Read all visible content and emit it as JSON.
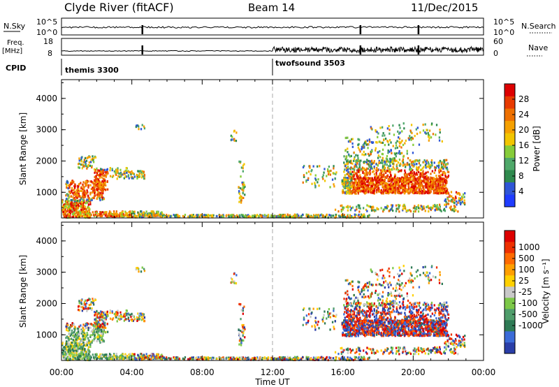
{
  "header": {
    "station": "Clyde River (fitACF)",
    "beam": "Beam 14",
    "date": "11/Dec/2015"
  },
  "param_panels": {
    "nsky_label": "N.Sky",
    "nsky_ticks": [
      "10^5",
      "10^0"
    ],
    "nsearch_label": "N.Search",
    "nsearch_ticks": [
      "10^5",
      "10^0"
    ],
    "freq_label_1": "Freq.",
    "freq_label_2": "[MHz]",
    "freq_ticks": [
      "18",
      "8"
    ],
    "nave_label": "Nave",
    "nave_ticks": [
      "60",
      "0"
    ],
    "cpid_label": "CPID",
    "cpid_segments": [
      {
        "name": "themis 3300",
        "start": 0,
        "end": 12
      },
      {
        "name": "twofsound 3503",
        "start": 12,
        "end": 24
      }
    ]
  },
  "colors": {
    "power": [
      "#1f3cff",
      "#2f56d6",
      "#2f8a4e",
      "#4fa86a",
      "#86cc3a",
      "#f2c500",
      "#f5a000",
      "#ee7000",
      "#e83a00",
      "#dd0000"
    ],
    "velocity": [
      "#2a3ea8",
      "#3b6bd8",
      "#2e7a55",
      "#4f9d6b",
      "#7cc848",
      "#c8c8c8",
      "#ffd000",
      "#ff9f00",
      "#ff6a00",
      "#ee3000",
      "#dd0000"
    ]
  },
  "chart_data": [
    {
      "type": "heatmap",
      "panel": "power",
      "ylabel": "Slant Range [km]",
      "xlim": [
        0,
        24
      ],
      "ylim": [
        180,
        4600
      ],
      "yticks": [
        "1000",
        "2000",
        "3000",
        "4000"
      ],
      "xticks": [
        "00:00",
        "04:00",
        "08:00",
        "12:00",
        "16:00",
        "20:00",
        "00:00"
      ],
      "colorbar": {
        "label": "Power [dB]",
        "range": [
          0,
          32
        ],
        "ticks": [
          "4",
          "8",
          "12",
          "16",
          "20",
          "24",
          "28"
        ]
      }
    },
    {
      "type": "heatmap",
      "panel": "velocity",
      "ylabel": "Slant Range [km]",
      "xlabel": "Time UT",
      "xlim": [
        0,
        24
      ],
      "ylim": [
        180,
        4600
      ],
      "yticks": [
        "1000",
        "2000",
        "3000",
        "4000"
      ],
      "xticks": [
        "00:00",
        "04:00",
        "08:00",
        "12:00",
        "16:00",
        "20:00",
        "00:00"
      ],
      "colorbar": {
        "label": "Velocity [m s⁻¹]",
        "ticks": [
          "1000",
          "500",
          "100",
          "25",
          "-25",
          "-100",
          "-500",
          "-1000"
        ]
      }
    }
  ]
}
